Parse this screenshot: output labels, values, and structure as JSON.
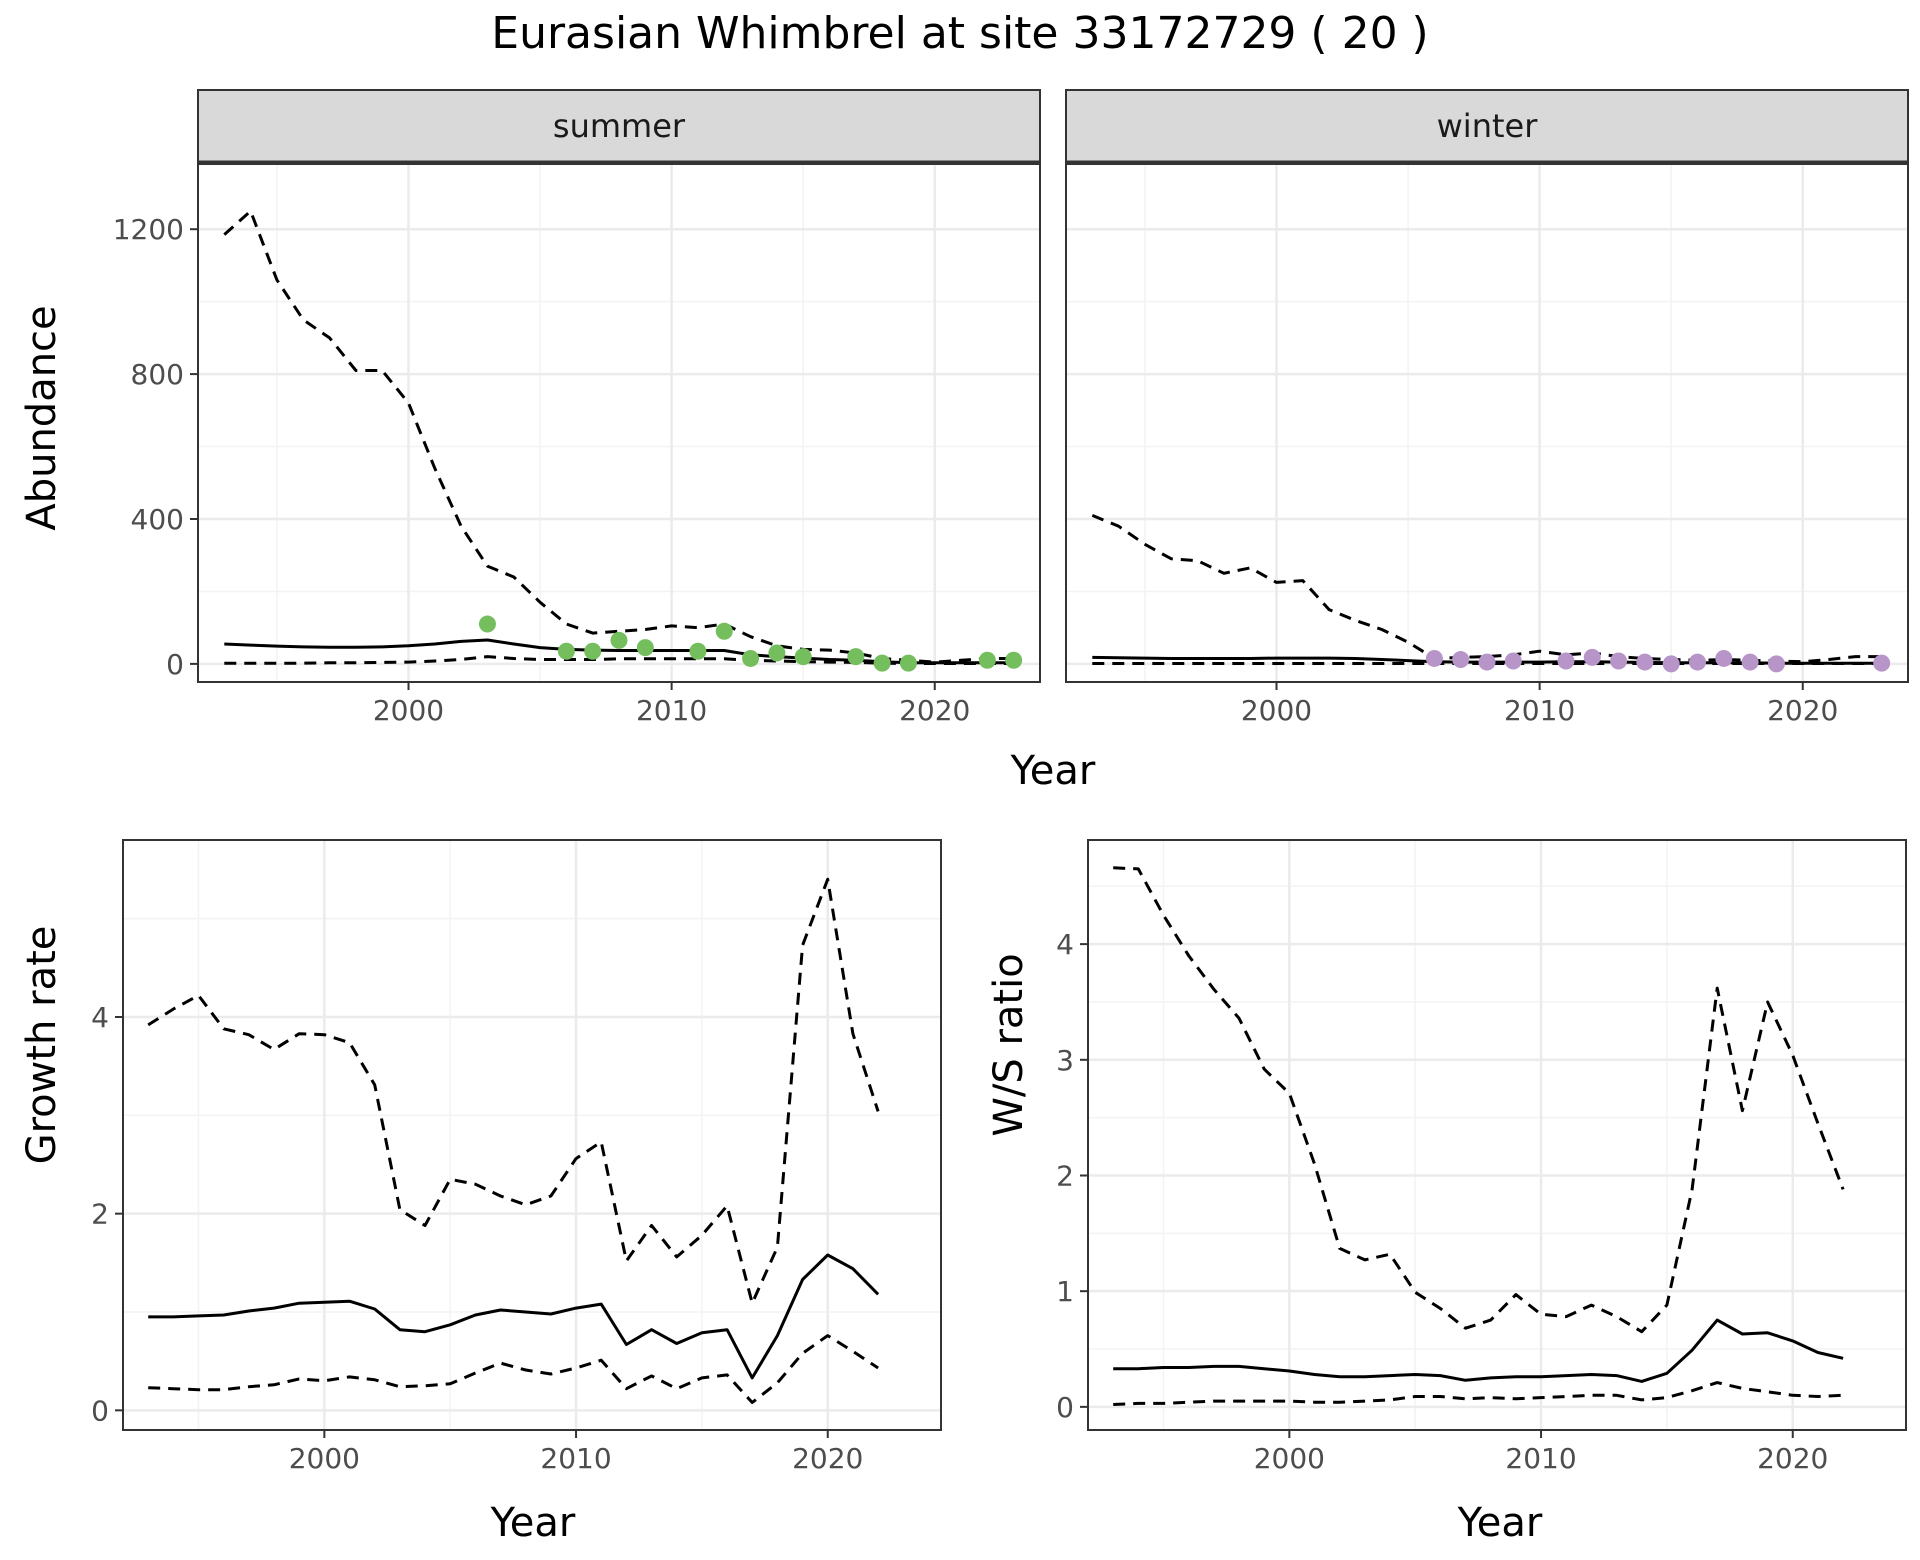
{
  "title": "Eurasian Whimbrel at site 33172729 ( 20 )",
  "colors": {
    "summer_points": "#74be5e",
    "winter_points": "#b795c9",
    "line": "#000000",
    "strip_fill": "#d9d9d9",
    "grid_major": "#ebebeb"
  },
  "chart_data": [
    {
      "type": "line",
      "panel": "summer",
      "strip_label": "summer",
      "xlabel": "Year",
      "ylabel": "Abundance",
      "xlim": [
        1992,
        2024
      ],
      "ylim": [
        -50,
        1380
      ],
      "xticks": [
        2000,
        2010,
        2020
      ],
      "yticks": [
        0,
        400,
        800,
        1200
      ],
      "shared_with": "winter",
      "grid": true,
      "series": [
        {
          "style": "solid",
          "x": [
            1993,
            1994,
            1995,
            1996,
            1997,
            1998,
            1999,
            2000,
            2001,
            2002,
            2003,
            2004,
            2005,
            2006,
            2007,
            2008,
            2009,
            2010,
            2011,
            2012,
            2013,
            2014,
            2015,
            2016,
            2017,
            2018,
            2019,
            2020,
            2021,
            2022,
            2023
          ],
          "y": [
            55,
            52,
            49,
            47,
            46,
            46,
            47,
            50,
            55,
            62,
            66,
            55,
            45,
            40,
            38,
            37,
            37,
            37,
            37,
            37,
            25,
            20,
            16,
            12,
            10,
            6,
            3,
            3,
            3,
            3,
            3
          ]
        },
        {
          "style": "dashed",
          "x": [
            1993,
            1994,
            1995,
            1996,
            1997,
            1998,
            1999,
            2000,
            2001,
            2002,
            2003,
            2004,
            2005,
            2006,
            2007,
            2008,
            2009,
            2010,
            2011,
            2012,
            2013,
            2014,
            2015,
            2016,
            2017,
            2018,
            2019,
            2020,
            2021,
            2022,
            2023
          ],
          "y": [
            1185,
            1250,
            1060,
            950,
            900,
            810,
            810,
            720,
            540,
            380,
            270,
            240,
            170,
            110,
            85,
            90,
            95,
            105,
            100,
            110,
            75,
            50,
            40,
            38,
            30,
            15,
            10,
            5,
            10,
            15,
            15
          ]
        },
        {
          "style": "dashed",
          "x": [
            1993,
            1994,
            1995,
            1996,
            1997,
            1998,
            1999,
            2000,
            2001,
            2002,
            2003,
            2004,
            2005,
            2006,
            2007,
            2008,
            2009,
            2010,
            2011,
            2012,
            2013,
            2014,
            2015,
            2016,
            2017,
            2018,
            2019,
            2020,
            2021,
            2022,
            2023
          ],
          "y": [
            2,
            2,
            2,
            2,
            3,
            3,
            4,
            5,
            8,
            12,
            20,
            15,
            12,
            12,
            12,
            14,
            14,
            14,
            14,
            14,
            10,
            8,
            6,
            5,
            4,
            2,
            1,
            1,
            1,
            1,
            1
          ]
        }
      ],
      "points": {
        "x": [
          2003,
          2006,
          2007,
          2008,
          2009,
          2011,
          2012,
          2013,
          2014,
          2015,
          2017,
          2018,
          2019,
          2022,
          2023
        ],
        "y": [
          110,
          35,
          35,
          65,
          45,
          35,
          90,
          15,
          30,
          20,
          20,
          2,
          2,
          10,
          10
        ]
      }
    },
    {
      "type": "line",
      "panel": "winter",
      "strip_label": "winter",
      "xlabel": "Year",
      "ylabel": "Abundance",
      "xlim": [
        1992,
        2024
      ],
      "ylim": [
        -50,
        1380
      ],
      "xticks": [
        2000,
        2010,
        2020
      ],
      "yticks": [
        0,
        400,
        800,
        1200
      ],
      "grid": true,
      "series": [
        {
          "style": "solid",
          "x": [
            1993,
            1994,
            1995,
            1996,
            1997,
            1998,
            1999,
            2000,
            2001,
            2002,
            2003,
            2004,
            2005,
            2006,
            2007,
            2008,
            2009,
            2010,
            2011,
            2012,
            2013,
            2014,
            2015,
            2016,
            2017,
            2018,
            2019,
            2020,
            2021,
            2022,
            2023
          ],
          "y": [
            18,
            17,
            16,
            15,
            15,
            15,
            15,
            16,
            16,
            16,
            15,
            12,
            9,
            6,
            5,
            5,
            5,
            5,
            6,
            6,
            5,
            4,
            3,
            3,
            3,
            3,
            2,
            2,
            2,
            2,
            2
          ]
        },
        {
          "style": "dashed",
          "x": [
            1993,
            1994,
            1995,
            1996,
            1997,
            1998,
            1999,
            2000,
            2001,
            2002,
            2003,
            2004,
            2005,
            2006,
            2007,
            2008,
            2009,
            2010,
            2011,
            2012,
            2013,
            2014,
            2015,
            2016,
            2017,
            2018,
            2019,
            2020,
            2021,
            2022,
            2023
          ],
          "y": [
            410,
            380,
            330,
            290,
            285,
            250,
            265,
            225,
            230,
            150,
            120,
            95,
            60,
            15,
            18,
            20,
            25,
            35,
            25,
            30,
            20,
            15,
            12,
            10,
            12,
            10,
            8,
            6,
            12,
            20,
            20
          ]
        },
        {
          "style": "dashed",
          "x": [
            1993,
            1994,
            1995,
            1996,
            1997,
            1998,
            1999,
            2000,
            2001,
            2002,
            2003,
            2004,
            2005,
            2006,
            2007,
            2008,
            2009,
            2010,
            2011,
            2012,
            2013,
            2014,
            2015,
            2016,
            2017,
            2018,
            2019,
            2020,
            2021,
            2022,
            2023
          ],
          "y": [
            1,
            1,
            1,
            1,
            1,
            1,
            1,
            1,
            1,
            1,
            1,
            1,
            1,
            1,
            1,
            1,
            1,
            1,
            1,
            1,
            1,
            1,
            1,
            1,
            1,
            1,
            1,
            1,
            1,
            1,
            1
          ]
        }
      ],
      "points": {
        "x": [
          2006,
          2007,
          2008,
          2009,
          2011,
          2012,
          2013,
          2014,
          2015,
          2016,
          2017,
          2018,
          2019,
          2023
        ],
        "y": [
          15,
          12,
          5,
          8,
          8,
          18,
          8,
          5,
          0,
          5,
          15,
          5,
          0,
          2
        ]
      }
    },
    {
      "type": "line",
      "panel": "growth",
      "xlabel": "Year",
      "ylabel": "Growth rate",
      "xlim": [
        1992,
        2024.5
      ],
      "ylim": [
        -0.2,
        5.8
      ],
      "xticks": [
        2000,
        2010,
        2020
      ],
      "yticks": [
        0,
        2,
        4
      ],
      "grid": true,
      "series": [
        {
          "style": "solid",
          "x": [
            1993,
            1994,
            1995,
            1996,
            1997,
            1998,
            1999,
            2000,
            2001,
            2002,
            2003,
            2004,
            2005,
            2006,
            2007,
            2008,
            2009,
            2010,
            2011,
            2012,
            2013,
            2014,
            2015,
            2016,
            2017,
            2018,
            2019,
            2020,
            2021,
            2022
          ],
          "y": [
            0.95,
            0.95,
            0.96,
            0.97,
            1.01,
            1.04,
            1.09,
            1.1,
            1.11,
            1.03,
            0.82,
            0.8,
            0.87,
            0.97,
            1.02,
            1.0,
            0.98,
            1.04,
            1.08,
            0.67,
            0.82,
            0.68,
            0.79,
            0.82,
            0.33,
            0.76,
            1.33,
            1.58,
            1.44,
            1.18
          ]
        },
        {
          "style": "dashed",
          "x": [
            1993,
            1994,
            1995,
            1996,
            1997,
            1998,
            1999,
            2000,
            2001,
            2002,
            2003,
            2004,
            2005,
            2006,
            2007,
            2008,
            2009,
            2010,
            2011,
            2012,
            2013,
            2014,
            2015,
            2016,
            2017,
            2018,
            2019,
            2020,
            2021,
            2022
          ],
          "y": [
            3.92,
            4.08,
            4.22,
            3.88,
            3.82,
            3.67,
            3.83,
            3.82,
            3.74,
            3.31,
            2.04,
            1.88,
            2.35,
            2.3,
            2.18,
            2.09,
            2.18,
            2.56,
            2.73,
            1.52,
            1.88,
            1.56,
            1.78,
            2.08,
            1.09,
            1.66,
            4.73,
            5.4,
            3.83,
            3.04
          ]
        },
        {
          "style": "dashed",
          "x": [
            1993,
            1994,
            1995,
            1996,
            1997,
            1998,
            1999,
            2000,
            2001,
            2002,
            2003,
            2004,
            2005,
            2006,
            2007,
            2008,
            2009,
            2010,
            2011,
            2012,
            2013,
            2014,
            2015,
            2016,
            2017,
            2018,
            2019,
            2020,
            2021,
            2022
          ],
          "y": [
            0.23,
            0.22,
            0.21,
            0.21,
            0.24,
            0.26,
            0.32,
            0.3,
            0.34,
            0.31,
            0.24,
            0.25,
            0.27,
            0.38,
            0.48,
            0.41,
            0.37,
            0.43,
            0.51,
            0.22,
            0.35,
            0.22,
            0.33,
            0.36,
            0.08,
            0.28,
            0.58,
            0.76,
            0.6,
            0.43
          ]
        }
      ]
    },
    {
      "type": "line",
      "panel": "ratio",
      "xlabel": "Year",
      "ylabel": "W/S ratio",
      "xlim": [
        1992,
        2024.5
      ],
      "ylim": [
        -0.2,
        4.9
      ],
      "xticks": [
        2000,
        2010,
        2020
      ],
      "yticks": [
        0,
        1,
        2,
        3,
        4
      ],
      "grid": true,
      "series": [
        {
          "style": "solid",
          "x": [
            1993,
            1994,
            1995,
            1996,
            1997,
            1998,
            1999,
            2000,
            2001,
            2002,
            2003,
            2004,
            2005,
            2006,
            2007,
            2008,
            2009,
            2010,
            2011,
            2012,
            2013,
            2014,
            2015,
            2016,
            2017,
            2018,
            2019,
            2020,
            2021,
            2022
          ],
          "y": [
            0.33,
            0.33,
            0.34,
            0.34,
            0.35,
            0.35,
            0.33,
            0.31,
            0.28,
            0.26,
            0.26,
            0.27,
            0.28,
            0.27,
            0.23,
            0.25,
            0.26,
            0.26,
            0.27,
            0.28,
            0.27,
            0.22,
            0.29,
            0.49,
            0.75,
            0.63,
            0.64,
            0.57,
            0.47,
            0.42
          ]
        },
        {
          "style": "dashed",
          "x": [
            1993,
            1994,
            1995,
            1996,
            1997,
            1998,
            1999,
            2000,
            2001,
            2002,
            2003,
            2004,
            2005,
            2006,
            2007,
            2008,
            2009,
            2010,
            2011,
            2012,
            2013,
            2014,
            2015,
            2016,
            2017,
            2018,
            2019,
            2020,
            2021,
            2022
          ],
          "y": [
            4.66,
            4.65,
            4.25,
            3.9,
            3.61,
            3.36,
            2.92,
            2.71,
            2.1,
            1.37,
            1.27,
            1.32,
            0.99,
            0.85,
            0.68,
            0.75,
            0.97,
            0.8,
            0.78,
            0.88,
            0.78,
            0.65,
            0.88,
            1.88,
            3.62,
            2.56,
            3.5,
            3.04,
            2.45,
            1.88
          ]
        },
        {
          "style": "dashed",
          "x": [
            1993,
            1994,
            1995,
            1996,
            1997,
            1998,
            1999,
            2000,
            2001,
            2002,
            2003,
            2004,
            2005,
            2006,
            2007,
            2008,
            2009,
            2010,
            2011,
            2012,
            2013,
            2014,
            2015,
            2016,
            2017,
            2018,
            2019,
            2020,
            2021,
            2022
          ],
          "y": [
            0.02,
            0.03,
            0.03,
            0.04,
            0.05,
            0.05,
            0.05,
            0.05,
            0.04,
            0.04,
            0.05,
            0.06,
            0.09,
            0.09,
            0.07,
            0.08,
            0.07,
            0.08,
            0.09,
            0.1,
            0.1,
            0.06,
            0.08,
            0.14,
            0.21,
            0.16,
            0.13,
            0.1,
            0.09,
            0.1
          ]
        }
      ]
    }
  ]
}
